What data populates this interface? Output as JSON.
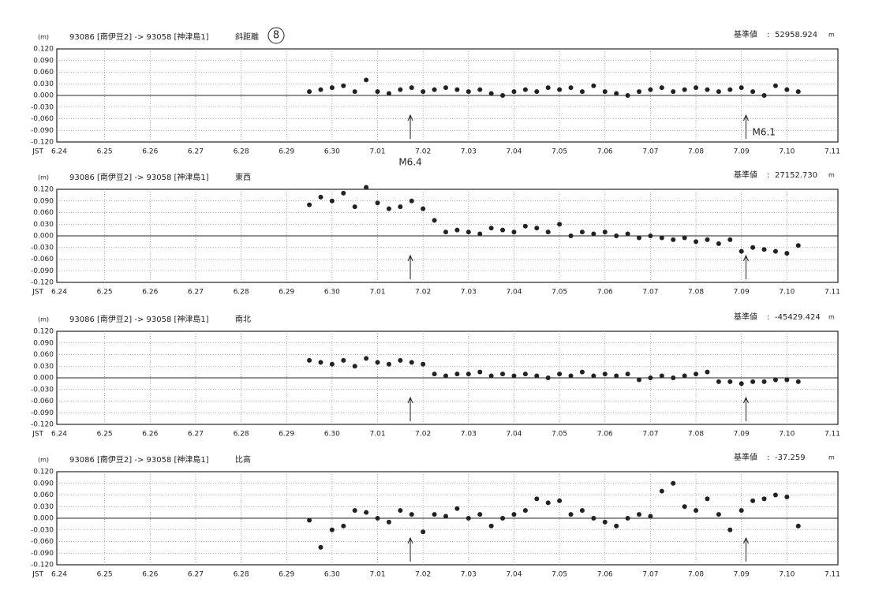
{
  "page_mark": "8",
  "chart_data": [
    {
      "type": "scatter",
      "unit_label": "(m)",
      "station_pair": "93086 [南伊豆2] -> 93058 [神津島1]",
      "component": "斜距離",
      "base_name": "基準値",
      "base_value": 52958.924,
      "base_unit": "m",
      "x_prefix": "JST",
      "color": "#222",
      "grid": true,
      "xlim": [
        0,
        17
      ],
      "ylim": [
        -0.12,
        0.12
      ],
      "xticks": [
        {
          "value": 0,
          "label": "6.24"
        },
        {
          "value": 1,
          "label": "6.25"
        },
        {
          "value": 2,
          "label": "6.26"
        },
        {
          "value": 3,
          "label": "6.27"
        },
        {
          "value": 4,
          "label": "6.28"
        },
        {
          "value": 5,
          "label": "6.29"
        },
        {
          "value": 6,
          "label": "6.30"
        },
        {
          "value": 7,
          "label": "7.01"
        },
        {
          "value": 8,
          "label": "7.02"
        },
        {
          "value": 9,
          "label": "7.03"
        },
        {
          "value": 10,
          "label": "7.04"
        },
        {
          "value": 11,
          "label": "7.05"
        },
        {
          "value": 12,
          "label": "7.06"
        },
        {
          "value": 13,
          "label": "7.07"
        },
        {
          "value": 14,
          "label": "7.08"
        },
        {
          "value": 15,
          "label": "7.09"
        },
        {
          "value": 16,
          "label": "7.10"
        },
        {
          "value": 17,
          "label": "7.11"
        }
      ],
      "yticks": [
        {
          "value": 0.12,
          "label": "0.120"
        },
        {
          "value": 0.09,
          "label": "0.090"
        },
        {
          "value": 0.06,
          "label": "0.060"
        },
        {
          "value": 0.03,
          "label": "0.030"
        },
        {
          "value": 0,
          "label": "0.000"
        },
        {
          "value": -0.03,
          "label": "-0.030"
        },
        {
          "value": -0.06,
          "label": "-0.060"
        },
        {
          "value": -0.09,
          "label": "-0.090"
        },
        {
          "value": -0.12,
          "label": "-0.120"
        }
      ],
      "x": [
        5.5,
        5.75,
        6,
        6.25,
        6.5,
        6.75,
        7,
        7.25,
        7.5,
        7.75,
        8,
        8.25,
        8.5,
        8.75,
        9,
        9.25,
        9.5,
        9.75,
        10,
        10.25,
        10.5,
        10.75,
        11,
        11.25,
        11.5,
        11.75,
        12,
        12.25,
        12.5,
        12.75,
        13,
        13.25,
        13.5,
        13.75,
        14,
        14.25,
        14.5,
        14.75,
        15,
        15.25,
        15.5,
        15.75,
        16,
        16.25
      ],
      "values": [
        0.01,
        0.015,
        0.02,
        0.025,
        0.01,
        0.04,
        0.01,
        0.005,
        0.015,
        0.02,
        0.01,
        0.015,
        0.02,
        0.015,
        0.01,
        0.015,
        0.005,
        0,
        0.01,
        0.015,
        0.01,
        0.02,
        0.015,
        0.02,
        0.01,
        0.025,
        0.01,
        0.005,
        0,
        0.01,
        0.015,
        0.02,
        0.01,
        0.015,
        0.02,
        0.015,
        0.01,
        0.015,
        0.02,
        0.01,
        0,
        0.025,
        0.015,
        0.01
      ],
      "events": [
        {
          "x": 7.72,
          "label": "M6.4"
        },
        {
          "x": 15.1,
          "label": "M6.1"
        }
      ]
    },
    {
      "type": "scatter",
      "unit_label": "(m)",
      "station_pair": "93086 [南伊豆2] -> 93058 [神津島1]",
      "component": "東西",
      "base_name": "基準値",
      "base_value": {
        "value": 27152.73,
        "label": "27152.730"
      },
      "base_unit": "m",
      "x_prefix": "JST",
      "color": "#222",
      "grid": true,
      "xlim": [
        0,
        17
      ],
      "ylim": [
        -0.12,
        0.12
      ],
      "xticks": [
        {
          "value": 0,
          "label": "6.24"
        },
        {
          "value": 1,
          "label": "6.25"
        },
        {
          "value": 2,
          "label": "6.26"
        },
        {
          "value": 3,
          "label": "6.27"
        },
        {
          "value": 4,
          "label": "6.28"
        },
        {
          "value": 5,
          "label": "6.29"
        },
        {
          "value": 6,
          "label": "6.30"
        },
        {
          "value": 7,
          "label": "7.01"
        },
        {
          "value": 8,
          "label": "7.02"
        },
        {
          "value": 9,
          "label": "7.03"
        },
        {
          "value": 10,
          "label": "7.04"
        },
        {
          "value": 11,
          "label": "7.05"
        },
        {
          "value": 12,
          "label": "7.06"
        },
        {
          "value": 13,
          "label": "7.07"
        },
        {
          "value": 14,
          "label": "7.08"
        },
        {
          "value": 15,
          "label": "7.09"
        },
        {
          "value": 16,
          "label": "7.10"
        },
        {
          "value": 17,
          "label": "7.11"
        }
      ],
      "yticks": [
        {
          "value": 0.12,
          "label": "0.120"
        },
        {
          "value": 0.09,
          "label": "0.090"
        },
        {
          "value": 0.06,
          "label": "0.060"
        },
        {
          "value": 0.03,
          "label": "0.030"
        },
        {
          "value": 0,
          "label": "0.000"
        },
        {
          "value": -0.03,
          "label": "-0.030"
        },
        {
          "value": -0.06,
          "label": "-0.060"
        },
        {
          "value": -0.09,
          "label": "-0.090"
        },
        {
          "value": -0.12,
          "label": "-0.120"
        }
      ],
      "x": [
        5.5,
        5.75,
        6,
        6.25,
        6.5,
        6.75,
        7,
        7.25,
        7.5,
        7.75,
        8,
        8.25,
        8.5,
        8.75,
        9,
        9.25,
        9.5,
        9.75,
        10,
        10.25,
        10.5,
        10.75,
        11,
        11.25,
        11.5,
        11.75,
        12,
        12.25,
        12.5,
        12.75,
        13,
        13.25,
        13.5,
        13.75,
        14,
        14.25,
        14.5,
        14.75,
        15,
        15.25,
        15.5,
        15.75,
        16,
        16.25
      ],
      "values": [
        0.08,
        0.1,
        0.09,
        0.11,
        0.075,
        0.125,
        0.085,
        0.07,
        0.075,
        0.09,
        0.07,
        0.04,
        0.01,
        0.015,
        0.01,
        0.005,
        0.02,
        0.015,
        0.01,
        0.025,
        0.02,
        0.01,
        0.03,
        0,
        0.01,
        0.005,
        0.01,
        0,
        0.005,
        -0.005,
        0,
        -0.005,
        -0.01,
        -0.005,
        -0.015,
        -0.01,
        -0.02,
        -0.01,
        -0.04,
        -0.03,
        -0.035,
        -0.04,
        -0.045,
        -0.025
      ],
      "events": [
        {
          "x": 7.72
        },
        {
          "x": 15.1
        }
      ]
    },
    {
      "type": "scatter",
      "unit_label": "(m)",
      "station_pair": "93086 [南伊豆2] -> 93058 [神津島1]",
      "component": "南北",
      "base_name": "基準値",
      "base_value": -45429.424,
      "base_unit": "m",
      "x_prefix": "JST",
      "color": "#222",
      "grid": true,
      "xlim": [
        0,
        17
      ],
      "ylim": [
        -0.12,
        0.12
      ],
      "xticks": [
        {
          "value": 0,
          "label": "6.24"
        },
        {
          "value": 1,
          "label": "6.25"
        },
        {
          "value": 2,
          "label": "6.26"
        },
        {
          "value": 3,
          "label": "6.27"
        },
        {
          "value": 4,
          "label": "6.28"
        },
        {
          "value": 5,
          "label": "6.29"
        },
        {
          "value": 6,
          "label": "6.30"
        },
        {
          "value": 7,
          "label": "7.01"
        },
        {
          "value": 8,
          "label": "7.02"
        },
        {
          "value": 9,
          "label": "7.03"
        },
        {
          "value": 10,
          "label": "7.04"
        },
        {
          "value": 11,
          "label": "7.05"
        },
        {
          "value": 12,
          "label": "7.06"
        },
        {
          "value": 13,
          "label": "7.07"
        },
        {
          "value": 14,
          "label": "7.08"
        },
        {
          "value": 15,
          "label": "7.09"
        },
        {
          "value": 16,
          "label": "7.10"
        },
        {
          "value": 17,
          "label": "7.11"
        }
      ],
      "yticks": [
        {
          "value": 0.12,
          "label": "0.120"
        },
        {
          "value": 0.09,
          "label": "0.090"
        },
        {
          "value": 0.06,
          "label": "0.060"
        },
        {
          "value": 0.03,
          "label": "0.030"
        },
        {
          "value": 0,
          "label": "0.000"
        },
        {
          "value": -0.03,
          "label": "-0.030"
        },
        {
          "value": -0.06,
          "label": "-0.060"
        },
        {
          "value": -0.09,
          "label": "-0.090"
        },
        {
          "value": -0.12,
          "label": "-0.120"
        }
      ],
      "x": [
        5.5,
        5.75,
        6,
        6.25,
        6.5,
        6.75,
        7,
        7.25,
        7.5,
        7.75,
        8,
        8.25,
        8.5,
        8.75,
        9,
        9.25,
        9.5,
        9.75,
        10,
        10.25,
        10.5,
        10.75,
        11,
        11.25,
        11.5,
        11.75,
        12,
        12.25,
        12.5,
        12.75,
        13,
        13.25,
        13.5,
        13.75,
        14,
        14.25,
        14.5,
        14.75,
        15,
        15.25,
        15.5,
        15.75,
        16,
        16.25
      ],
      "values": [
        0.045,
        0.04,
        0.035,
        0.045,
        0.03,
        0.05,
        0.04,
        0.035,
        0.045,
        0.04,
        0.035,
        0.01,
        0.005,
        0.01,
        0.01,
        0.015,
        0.005,
        0.01,
        0.005,
        0.01,
        0.005,
        0,
        0.01,
        0.005,
        0.015,
        0.005,
        0.01,
        0.005,
        0.01,
        -0.005,
        0,
        0.005,
        0,
        0.005,
        0.01,
        0.015,
        -0.01,
        -0.01,
        -0.015,
        -0.01,
        -0.01,
        -0.005,
        -0.005,
        -0.01
      ],
      "events": [
        {
          "x": 7.72
        },
        {
          "x": 15.1
        }
      ]
    },
    {
      "type": "scatter",
      "unit_label": "(m)",
      "station_pair": "93086 [南伊豆2] -> 93058 [神津島1]",
      "component": "比高",
      "base_name": "基準値",
      "base_value": -37.259,
      "base_unit": "m",
      "x_prefix": "JST",
      "color": "#222",
      "grid": true,
      "xlim": [
        0,
        17
      ],
      "ylim": [
        -0.12,
        0.12
      ],
      "xticks": [
        {
          "value": 0,
          "label": "6.24"
        },
        {
          "value": 1,
          "label": "6.25"
        },
        {
          "value": 2,
          "label": "6.26"
        },
        {
          "value": 3,
          "label": "6.27"
        },
        {
          "value": 4,
          "label": "6.28"
        },
        {
          "value": 5,
          "label": "6.29"
        },
        {
          "value": 6,
          "label": "6.30"
        },
        {
          "value": 7,
          "label": "7.01"
        },
        {
          "value": 8,
          "label": "7.02"
        },
        {
          "value": 9,
          "label": "7.03"
        },
        {
          "value": 10,
          "label": "7.04"
        },
        {
          "value": 11,
          "label": "7.05"
        },
        {
          "value": 12,
          "label": "7.06"
        },
        {
          "value": 13,
          "label": "7.07"
        },
        {
          "value": 14,
          "label": "7.08"
        },
        {
          "value": 15,
          "label": "7.09"
        },
        {
          "value": 16,
          "label": "7.10"
        },
        {
          "value": 17,
          "label": "7.11"
        }
      ],
      "yticks": [
        {
          "value": 0.12,
          "label": "0.120"
        },
        {
          "value": 0.09,
          "label": "0.090"
        },
        {
          "value": 0.06,
          "label": "0.060"
        },
        {
          "value": 0.03,
          "label": "0.030"
        },
        {
          "value": 0,
          "label": "0.000"
        },
        {
          "value": -0.03,
          "label": "-0.030"
        },
        {
          "value": -0.06,
          "label": "-0.060"
        },
        {
          "value": -0.09,
          "label": "-0.090"
        },
        {
          "value": -0.12,
          "label": "-0.120"
        }
      ],
      "x": [
        5.5,
        5.75,
        6,
        6.25,
        6.5,
        6.75,
        7,
        7.25,
        7.5,
        7.75,
        8,
        8.25,
        8.5,
        8.75,
        9,
        9.25,
        9.5,
        9.75,
        10,
        10.25,
        10.5,
        10.75,
        11,
        11.25,
        11.5,
        11.75,
        12,
        12.25,
        12.5,
        12.75,
        13,
        13.25,
        13.5,
        13.75,
        14,
        14.25,
        14.5,
        14.75,
        15,
        15.25,
        15.5,
        15.75,
        16,
        16.25
      ],
      "values": [
        -0.005,
        -0.075,
        -0.03,
        -0.02,
        0.02,
        0.015,
        0,
        -0.01,
        0.02,
        0.01,
        -0.035,
        0.01,
        0.005,
        0.025,
        0,
        0.01,
        -0.02,
        0,
        0.01,
        0.02,
        0.05,
        0.04,
        0.045,
        0.01,
        0.02,
        0,
        -0.01,
        -0.02,
        0,
        0.01,
        0.005,
        0.07,
        0.09,
        0.03,
        0.02,
        0.05,
        0.01,
        -0.03,
        0.02,
        0.045,
        0.05,
        0.06,
        0.055,
        -0.02
      ],
      "events": [
        {
          "x": 7.72
        },
        {
          "x": 15.1
        }
      ]
    }
  ]
}
